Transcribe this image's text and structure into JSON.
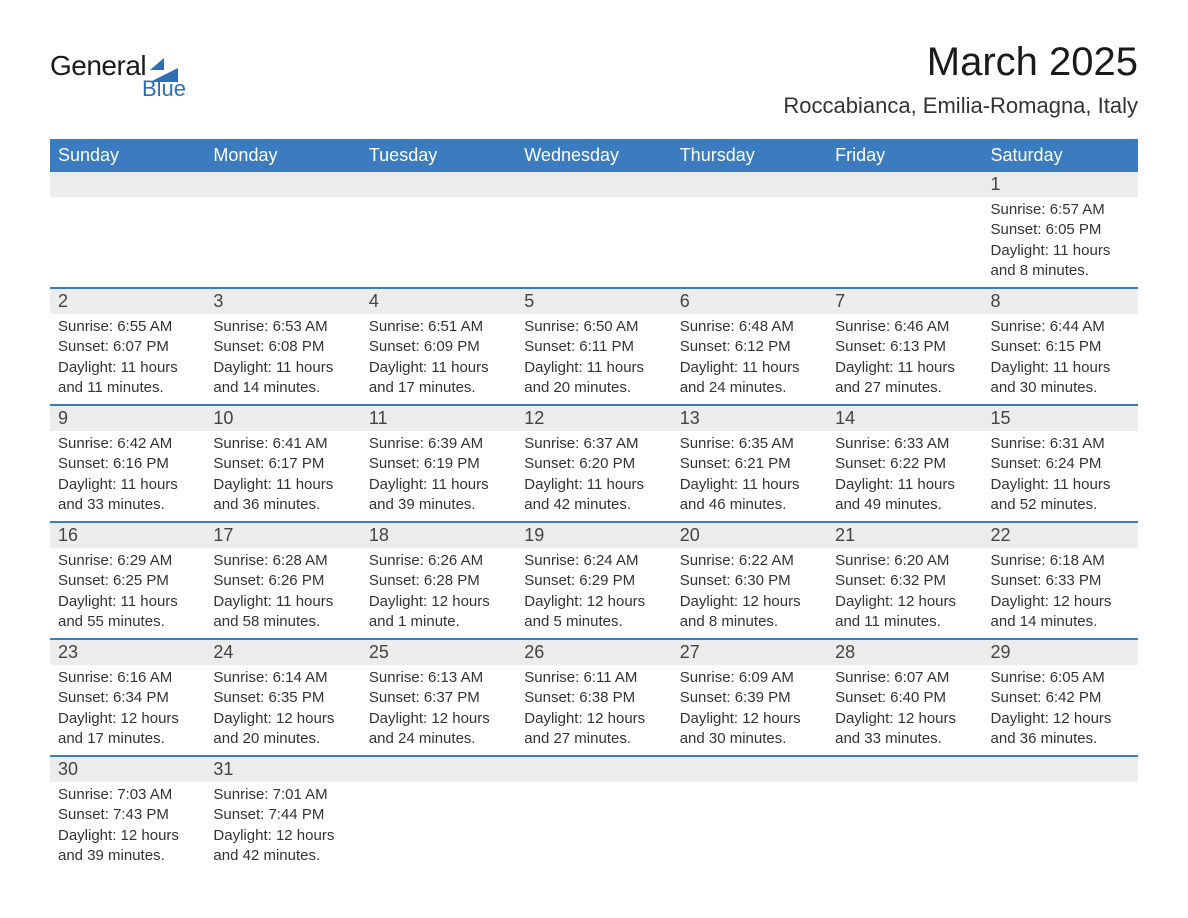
{
  "logo": {
    "text1": "General",
    "text2": "Blue",
    "icon_color": "#2d6fb5"
  },
  "title": "March 2025",
  "location": "Roccabianca, Emilia-Romagna, Italy",
  "calendar": {
    "header_bg": "#3a7cbf",
    "header_fg": "#ffffff",
    "daynum_bg": "#ececec",
    "row_border": "#3a7cbf",
    "text_color": "#333333",
    "columns": [
      "Sunday",
      "Monday",
      "Tuesday",
      "Wednesday",
      "Thursday",
      "Friday",
      "Saturday"
    ],
    "weeks": [
      [
        null,
        null,
        null,
        null,
        null,
        null,
        {
          "n": "1",
          "sunrise": "Sunrise: 6:57 AM",
          "sunset": "Sunset: 6:05 PM",
          "dl1": "Daylight: 11 hours",
          "dl2": "and 8 minutes."
        }
      ],
      [
        {
          "n": "2",
          "sunrise": "Sunrise: 6:55 AM",
          "sunset": "Sunset: 6:07 PM",
          "dl1": "Daylight: 11 hours",
          "dl2": "and 11 minutes."
        },
        {
          "n": "3",
          "sunrise": "Sunrise: 6:53 AM",
          "sunset": "Sunset: 6:08 PM",
          "dl1": "Daylight: 11 hours",
          "dl2": "and 14 minutes."
        },
        {
          "n": "4",
          "sunrise": "Sunrise: 6:51 AM",
          "sunset": "Sunset: 6:09 PM",
          "dl1": "Daylight: 11 hours",
          "dl2": "and 17 minutes."
        },
        {
          "n": "5",
          "sunrise": "Sunrise: 6:50 AM",
          "sunset": "Sunset: 6:11 PM",
          "dl1": "Daylight: 11 hours",
          "dl2": "and 20 minutes."
        },
        {
          "n": "6",
          "sunrise": "Sunrise: 6:48 AM",
          "sunset": "Sunset: 6:12 PM",
          "dl1": "Daylight: 11 hours",
          "dl2": "and 24 minutes."
        },
        {
          "n": "7",
          "sunrise": "Sunrise: 6:46 AM",
          "sunset": "Sunset: 6:13 PM",
          "dl1": "Daylight: 11 hours",
          "dl2": "and 27 minutes."
        },
        {
          "n": "8",
          "sunrise": "Sunrise: 6:44 AM",
          "sunset": "Sunset: 6:15 PM",
          "dl1": "Daylight: 11 hours",
          "dl2": "and 30 minutes."
        }
      ],
      [
        {
          "n": "9",
          "sunrise": "Sunrise: 6:42 AM",
          "sunset": "Sunset: 6:16 PM",
          "dl1": "Daylight: 11 hours",
          "dl2": "and 33 minutes."
        },
        {
          "n": "10",
          "sunrise": "Sunrise: 6:41 AM",
          "sunset": "Sunset: 6:17 PM",
          "dl1": "Daylight: 11 hours",
          "dl2": "and 36 minutes."
        },
        {
          "n": "11",
          "sunrise": "Sunrise: 6:39 AM",
          "sunset": "Sunset: 6:19 PM",
          "dl1": "Daylight: 11 hours",
          "dl2": "and 39 minutes."
        },
        {
          "n": "12",
          "sunrise": "Sunrise: 6:37 AM",
          "sunset": "Sunset: 6:20 PM",
          "dl1": "Daylight: 11 hours",
          "dl2": "and 42 minutes."
        },
        {
          "n": "13",
          "sunrise": "Sunrise: 6:35 AM",
          "sunset": "Sunset: 6:21 PM",
          "dl1": "Daylight: 11 hours",
          "dl2": "and 46 minutes."
        },
        {
          "n": "14",
          "sunrise": "Sunrise: 6:33 AM",
          "sunset": "Sunset: 6:22 PM",
          "dl1": "Daylight: 11 hours",
          "dl2": "and 49 minutes."
        },
        {
          "n": "15",
          "sunrise": "Sunrise: 6:31 AM",
          "sunset": "Sunset: 6:24 PM",
          "dl1": "Daylight: 11 hours",
          "dl2": "and 52 minutes."
        }
      ],
      [
        {
          "n": "16",
          "sunrise": "Sunrise: 6:29 AM",
          "sunset": "Sunset: 6:25 PM",
          "dl1": "Daylight: 11 hours",
          "dl2": "and 55 minutes."
        },
        {
          "n": "17",
          "sunrise": "Sunrise: 6:28 AM",
          "sunset": "Sunset: 6:26 PM",
          "dl1": "Daylight: 11 hours",
          "dl2": "and 58 minutes."
        },
        {
          "n": "18",
          "sunrise": "Sunrise: 6:26 AM",
          "sunset": "Sunset: 6:28 PM",
          "dl1": "Daylight: 12 hours",
          "dl2": "and 1 minute."
        },
        {
          "n": "19",
          "sunrise": "Sunrise: 6:24 AM",
          "sunset": "Sunset: 6:29 PM",
          "dl1": "Daylight: 12 hours",
          "dl2": "and 5 minutes."
        },
        {
          "n": "20",
          "sunrise": "Sunrise: 6:22 AM",
          "sunset": "Sunset: 6:30 PM",
          "dl1": "Daylight: 12 hours",
          "dl2": "and 8 minutes."
        },
        {
          "n": "21",
          "sunrise": "Sunrise: 6:20 AM",
          "sunset": "Sunset: 6:32 PM",
          "dl1": "Daylight: 12 hours",
          "dl2": "and 11 minutes."
        },
        {
          "n": "22",
          "sunrise": "Sunrise: 6:18 AM",
          "sunset": "Sunset: 6:33 PM",
          "dl1": "Daylight: 12 hours",
          "dl2": "and 14 minutes."
        }
      ],
      [
        {
          "n": "23",
          "sunrise": "Sunrise: 6:16 AM",
          "sunset": "Sunset: 6:34 PM",
          "dl1": "Daylight: 12 hours",
          "dl2": "and 17 minutes."
        },
        {
          "n": "24",
          "sunrise": "Sunrise: 6:14 AM",
          "sunset": "Sunset: 6:35 PM",
          "dl1": "Daylight: 12 hours",
          "dl2": "and 20 minutes."
        },
        {
          "n": "25",
          "sunrise": "Sunrise: 6:13 AM",
          "sunset": "Sunset: 6:37 PM",
          "dl1": "Daylight: 12 hours",
          "dl2": "and 24 minutes."
        },
        {
          "n": "26",
          "sunrise": "Sunrise: 6:11 AM",
          "sunset": "Sunset: 6:38 PM",
          "dl1": "Daylight: 12 hours",
          "dl2": "and 27 minutes."
        },
        {
          "n": "27",
          "sunrise": "Sunrise: 6:09 AM",
          "sunset": "Sunset: 6:39 PM",
          "dl1": "Daylight: 12 hours",
          "dl2": "and 30 minutes."
        },
        {
          "n": "28",
          "sunrise": "Sunrise: 6:07 AM",
          "sunset": "Sunset: 6:40 PM",
          "dl1": "Daylight: 12 hours",
          "dl2": "and 33 minutes."
        },
        {
          "n": "29",
          "sunrise": "Sunrise: 6:05 AM",
          "sunset": "Sunset: 6:42 PM",
          "dl1": "Daylight: 12 hours",
          "dl2": "and 36 minutes."
        }
      ],
      [
        {
          "n": "30",
          "sunrise": "Sunrise: 7:03 AM",
          "sunset": "Sunset: 7:43 PM",
          "dl1": "Daylight: 12 hours",
          "dl2": "and 39 minutes."
        },
        {
          "n": "31",
          "sunrise": "Sunrise: 7:01 AM",
          "sunset": "Sunset: 7:44 PM",
          "dl1": "Daylight: 12 hours",
          "dl2": "and 42 minutes."
        },
        null,
        null,
        null,
        null,
        null
      ]
    ]
  }
}
